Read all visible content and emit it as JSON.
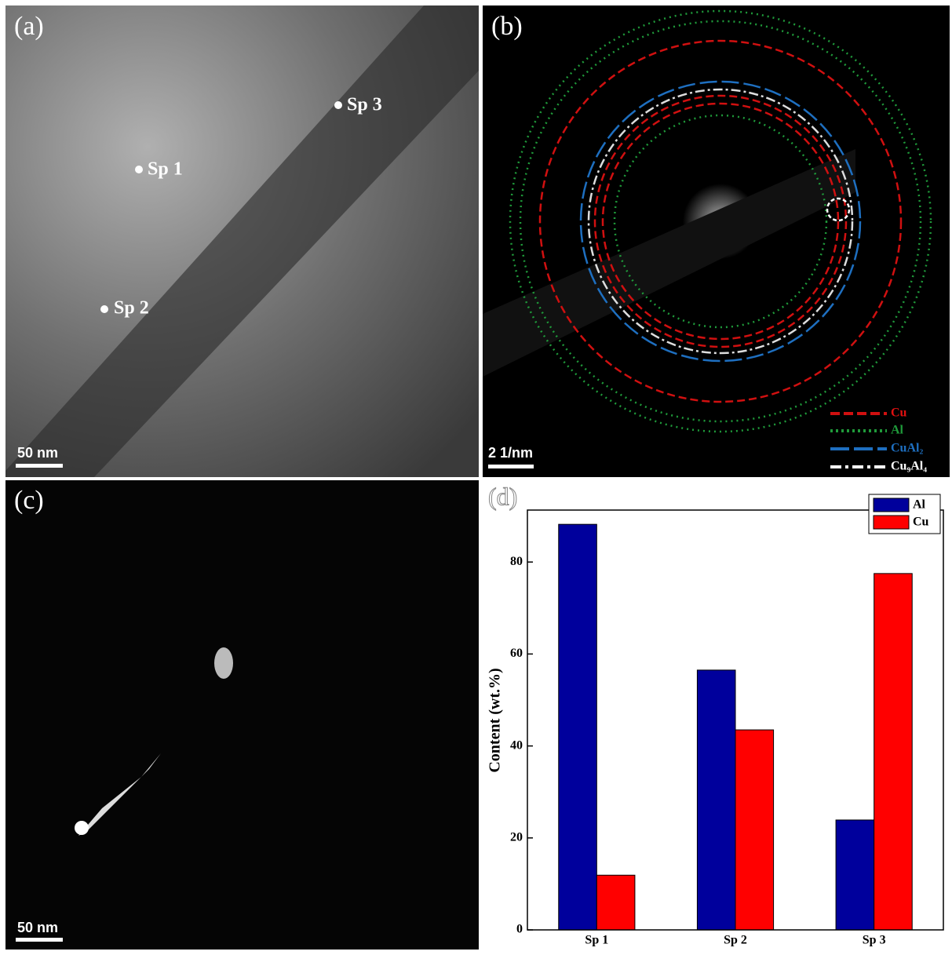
{
  "panels": {
    "a": {
      "label": "(a)",
      "points": [
        "Sp 1",
        "Sp 2",
        "Sp 3"
      ],
      "scale_bar": "50 nm"
    },
    "b": {
      "label": "(b)",
      "scale_bar": "2 1/nm",
      "legend": [
        "Cu",
        "Al",
        "CuAl₂",
        "Cu₉Al₄"
      ]
    },
    "c": {
      "label": "(c)",
      "scale_bar": "50 nm"
    }
  },
  "chart_data": {
    "type": "bar",
    "panel_label": "(d)",
    "y_label": "Content (wt.%)",
    "categories": [
      "Sp 1",
      "Sp 2",
      "Sp 3"
    ],
    "series": [
      {
        "name": "Al",
        "color": "#00009c",
        "values": [
          88.2,
          56.5,
          23.9
        ]
      },
      {
        "name": "Cu",
        "color": "#ff0000",
        "values": [
          11.9,
          43.5,
          77.5
        ]
      }
    ],
    "ylim": [
      0,
      91.3
    ],
    "yticks": [
      0,
      20,
      40,
      60,
      80
    ],
    "legend": "upper right"
  }
}
